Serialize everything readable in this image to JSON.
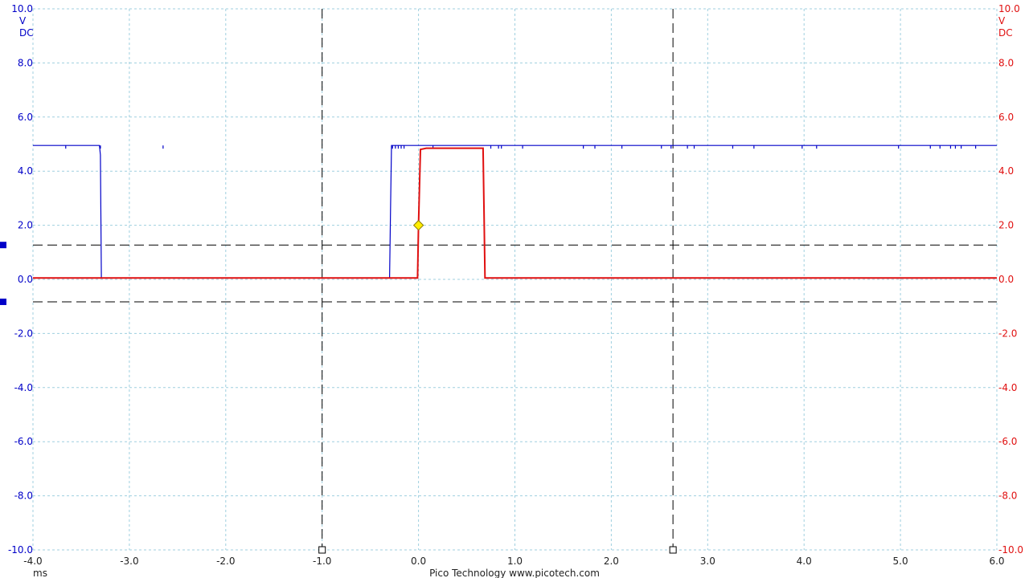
{
  "footer": {
    "x_unit": "ms",
    "credit": "Pico Technology   www.picotech.com"
  },
  "chart_data": {
    "type": "line",
    "title": "",
    "xlabel": "ms",
    "x_range": [
      -4.0,
      6.0
    ],
    "x_ticks": [
      -4.0,
      -3.0,
      -2.0,
      -1.0,
      0.0,
      1.0,
      2.0,
      3.0,
      4.0,
      5.0,
      6.0
    ],
    "x_tick_labels": [
      "-4.0",
      "-3.0",
      "-2.0",
      "-1.0",
      "0.0",
      "1.0",
      "2.0",
      "3.0",
      "4.0",
      "5.0",
      "6.0"
    ],
    "grid": true,
    "left_axis": {
      "color": "#0000c8",
      "units": [
        "V",
        "DC"
      ],
      "range": [
        -10.0,
        10.0
      ],
      "ticks": [
        10.0,
        8.0,
        6.0,
        4.0,
        2.0,
        0.0,
        -2.0,
        -4.0,
        -6.0,
        -8.0,
        -10.0
      ],
      "tick_labels": [
        "10.0",
        "8.0",
        "6.0",
        "4.0",
        "2.0",
        "0.0",
        "-2.0",
        "-4.0",
        "-6.0",
        "-8.0",
        "-10.0"
      ]
    },
    "right_axis": {
      "color": "#e01010",
      "units": [
        "V",
        "DC"
      ],
      "range": [
        -10.0,
        10.0
      ],
      "ticks": [
        10.0,
        8.0,
        6.0,
        4.0,
        2.0,
        0.0,
        -2.0,
        -4.0,
        -6.0,
        -8.0,
        -10.0
      ],
      "tick_labels": [
        "10.0",
        "8.0",
        "6.0",
        "4.0",
        "2.0",
        "0.0",
        "-2.0",
        "-4.0",
        "-6.0",
        "-8.0",
        "-10.0"
      ]
    },
    "series": [
      {
        "color": "#0000c8",
        "axis": "left",
        "points": [
          [
            -4.0,
            4.95
          ],
          [
            -3.31,
            4.95
          ],
          [
            -3.3,
            4.6
          ],
          [
            -3.29,
            0.05
          ],
          [
            -0.3,
            0.05
          ],
          [
            -0.29,
            2.6
          ],
          [
            -0.28,
            4.95
          ],
          [
            6.0,
            4.95
          ]
        ],
        "glitches_x": [
          -3.66,
          -3.3,
          -2.65,
          -0.27,
          -0.24,
          -0.21,
          -0.18,
          -0.15,
          0.15,
          0.75,
          0.83,
          0.86,
          1.08,
          1.71,
          1.83,
          2.11,
          2.52,
          2.62,
          2.79,
          2.86,
          3.26,
          3.48,
          3.98,
          4.13,
          4.98,
          5.31,
          5.41,
          5.52,
          5.57,
          5.63,
          5.78
        ]
      },
      {
        "color": "#e01010",
        "axis": "right",
        "points": [
          [
            -4.0,
            0.05
          ],
          [
            -0.01,
            0.05
          ],
          [
            0.0,
            2.0
          ],
          [
            0.02,
            4.8
          ],
          [
            0.08,
            4.85
          ],
          [
            0.67,
            4.85
          ],
          [
            0.68,
            2.5
          ],
          [
            0.69,
            0.05
          ],
          [
            6.0,
            0.05
          ]
        ]
      }
    ],
    "cursors": {
      "vertical_x": [
        -1.0,
        2.64
      ],
      "horizontal_y": [
        1.27,
        -0.83
      ]
    },
    "trigger": {
      "x": 0.0,
      "y": 2.0,
      "color": "#ffee00"
    },
    "channel_markers": [
      {
        "y": 1.27,
        "color": "#0000c8"
      },
      {
        "y": -0.83,
        "color": "#0000c8"
      }
    ]
  }
}
